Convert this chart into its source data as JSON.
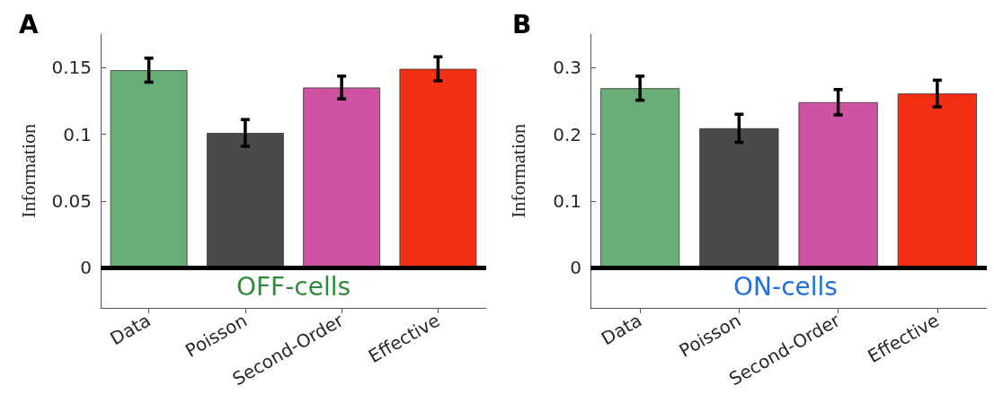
{
  "chart_data": [
    {
      "type": "bar",
      "title": "A",
      "ylabel": "Information",
      "categories": [
        "Data",
        "Poisson",
        "Second-Order",
        "Effective"
      ],
      "values": [
        0.148,
        0.101,
        0.135,
        0.149
      ],
      "colors": [
        "#69ad77",
        "#4a4a4a",
        "#cf52a3",
        "#f42f14"
      ],
      "errors": [
        0.009,
        0.01,
        0.0085,
        0.009
      ],
      "ylim": [
        -0.03,
        0.175
      ],
      "yticks": [
        0,
        0.05,
        0.1,
        0.15
      ],
      "ref_lines": [
        {
          "axis": "y",
          "value": 0,
          "color": "#000000"
        }
      ],
      "annotations": [
        "OFF-cells"
      ],
      "grid": false
    },
    {
      "type": "bar",
      "title": "B",
      "ylabel": "Information",
      "categories": [
        "Data",
        "Poisson",
        "Second-Order",
        "Effective"
      ],
      "values": [
        0.269,
        0.209,
        0.248,
        0.261
      ],
      "colors": [
        "#69ad77",
        "#4a4a4a",
        "#cf52a3",
        "#f42f14"
      ],
      "errors": [
        0.018,
        0.021,
        0.019,
        0.02
      ],
      "ylim": [
        -0.06,
        0.35
      ],
      "yticks": [
        0,
        0.1,
        0.2,
        0.3
      ],
      "ref_lines": [
        {
          "axis": "y",
          "value": 0,
          "color": "#000000"
        }
      ],
      "annotations": [
        "ON-cells"
      ],
      "grid": false
    }
  ]
}
